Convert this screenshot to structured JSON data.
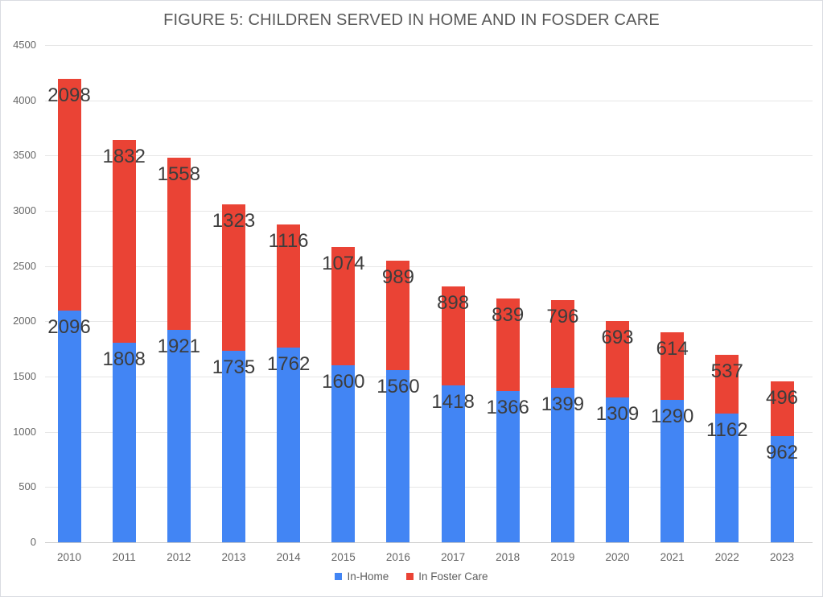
{
  "chart_data": {
    "type": "bar",
    "stacked": true,
    "title": "FIGURE 5: CHILDREN SERVED IN HOME AND IN FOSDER CARE",
    "categories": [
      "2010",
      "2011",
      "2012",
      "2013",
      "2014",
      "2015",
      "2016",
      "2017",
      "2018",
      "2019",
      "2020",
      "2021",
      "2022",
      "2023"
    ],
    "series": [
      {
        "name": "In-Home",
        "color": "#4285F4",
        "values": [
          2096,
          1808,
          1921,
          1735,
          1762,
          1600,
          1560,
          1418,
          1366,
          1399,
          1309,
          1290,
          1162,
          962
        ]
      },
      {
        "name": "In Foster Care",
        "color": "#EA4335",
        "values": [
          2098,
          1832,
          1558,
          1323,
          1116,
          1074,
          989,
          898,
          839,
          796,
          693,
          614,
          537,
          496
        ]
      }
    ],
    "ylim": [
      0,
      4500
    ],
    "yticks": [
      0,
      500,
      1000,
      1500,
      2000,
      2500,
      3000,
      3500,
      4000,
      4500
    ],
    "grid": true,
    "legend_position": "bottom",
    "data_labels": "each stacked segment is labeled with its value near the top of the segment"
  }
}
